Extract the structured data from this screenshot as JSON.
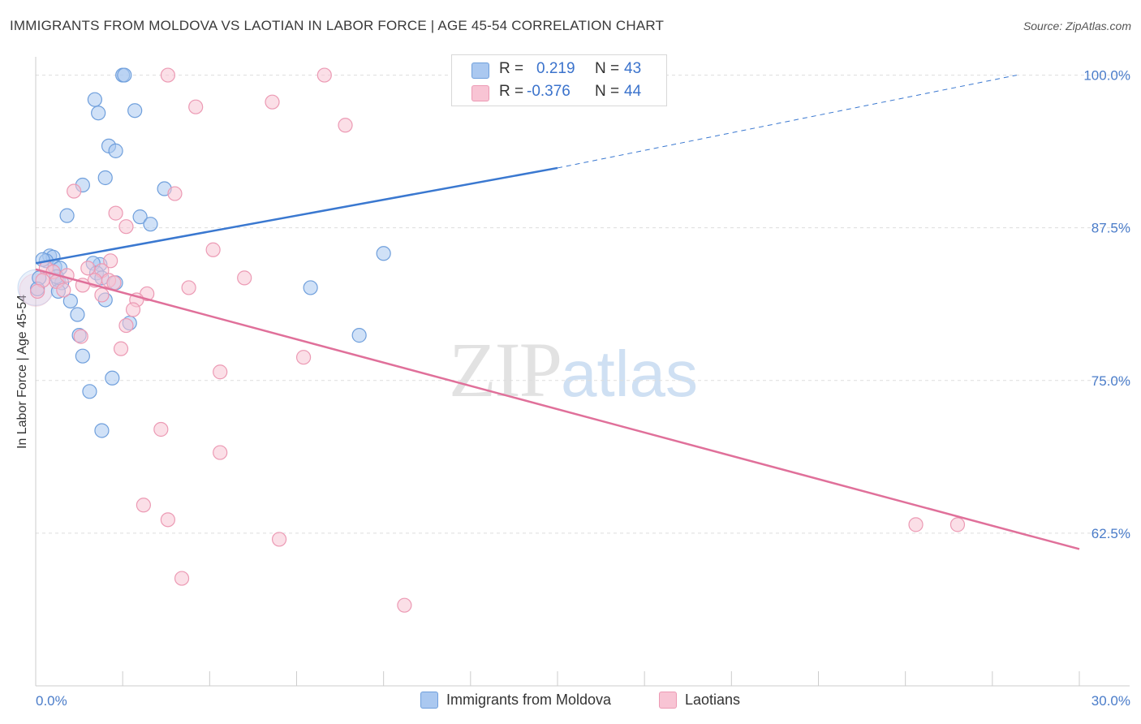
{
  "header": {
    "title": "IMMIGRANTS FROM MOLDOVA VS LAOTIAN IN LABOR FORCE | AGE 45-54 CORRELATION CHART",
    "source": "Source: ZipAtlas.com"
  },
  "watermark": {
    "zip": "ZIP",
    "atlas": "atlas"
  },
  "legend": {
    "rows": [
      {
        "r_label": "R =",
        "r_value": "0.219",
        "n_label": "N =",
        "n_value": "43"
      },
      {
        "r_label": "R =",
        "r_value": "-0.376",
        "n_label": "N =",
        "n_value": "44"
      }
    ]
  },
  "colors": {
    "moldova_fill": "#aac8f0",
    "moldova_stroke": "#6f9fdc",
    "moldova_line": "#3a78d0",
    "laotian_fill": "#f8c4d4",
    "laotian_stroke": "#ec9ab4",
    "laotian_line": "#e0709a",
    "axis_text": "#4a7cc9",
    "grid": "#dddddd"
  },
  "chart_data": {
    "type": "scatter",
    "title": "IMMIGRANTS FROM MOLDOVA VS LAOTIAN IN LABOR FORCE | AGE 45-54 CORRELATION CHART",
    "xlabel": "",
    "ylabel": "In Labor Force | Age 45-54",
    "xlim": [
      0,
      30
    ],
    "ylim": [
      50,
      101.5
    ],
    "x_tick_labels": [
      "0.0%",
      "30.0%"
    ],
    "y_ticks": [
      62.5,
      75.0,
      87.5,
      100.0
    ],
    "y_tick_labels": [
      "62.5%",
      "75.0%",
      "87.5%",
      "100.0%"
    ],
    "grid": true,
    "legend_position": "top-center",
    "series": [
      {
        "name": "Immigrants from Moldova",
        "R": 0.219,
        "N": 43,
        "trend": {
          "x0": 0.0,
          "y0": 84.6,
          "x1": 15.0,
          "y1": 92.4,
          "dashed_to_x": 28.2,
          "dashed_to_y": 100.0
        },
        "points": [
          [
            2.5,
            100.0
          ],
          [
            2.55,
            100.0
          ],
          [
            14.4,
            100.0
          ],
          [
            1.7,
            98.0
          ],
          [
            1.8,
            96.9
          ],
          [
            2.85,
            97.1
          ],
          [
            2.1,
            94.2
          ],
          [
            2.3,
            93.8
          ],
          [
            2.0,
            91.6
          ],
          [
            1.35,
            91.0
          ],
          [
            3.7,
            90.7
          ],
          [
            0.9,
            88.5
          ],
          [
            3.0,
            88.4
          ],
          [
            3.3,
            87.8
          ],
          [
            0.4,
            85.2
          ],
          [
            0.5,
            85.1
          ],
          [
            0.3,
            84.8
          ],
          [
            0.55,
            84.3
          ],
          [
            1.85,
            84.5
          ],
          [
            1.65,
            84.6
          ],
          [
            0.7,
            84.2
          ],
          [
            1.75,
            83.8
          ],
          [
            0.1,
            83.4
          ],
          [
            0.65,
            83.2
          ],
          [
            0.75,
            83.0
          ],
          [
            1.9,
            83.4
          ],
          [
            2.3,
            83.0
          ],
          [
            0.05,
            82.5
          ],
          [
            0.65,
            82.3
          ],
          [
            1.0,
            81.5
          ],
          [
            2.0,
            81.6
          ],
          [
            7.9,
            82.6
          ],
          [
            1.2,
            80.4
          ],
          [
            2.7,
            79.7
          ],
          [
            1.25,
            78.7
          ],
          [
            9.3,
            78.7
          ],
          [
            1.35,
            77.0
          ],
          [
            10.0,
            85.4
          ],
          [
            2.2,
            75.2
          ],
          [
            1.55,
            74.1
          ],
          [
            1.9,
            70.9
          ],
          [
            0.2,
            84.9
          ],
          [
            0.6,
            83.5
          ]
        ]
      },
      {
        "name": "Laotians",
        "R": -0.376,
        "N": 44,
        "trend": {
          "x0": 0.0,
          "y0": 84.1,
          "x1": 30.0,
          "y1": 61.2
        },
        "points": [
          [
            3.8,
            100.0
          ],
          [
            8.3,
            100.0
          ],
          [
            6.8,
            97.8
          ],
          [
            4.6,
            97.4
          ],
          [
            8.9,
            95.9
          ],
          [
            1.1,
            90.5
          ],
          [
            4.0,
            90.3
          ],
          [
            2.3,
            88.7
          ],
          [
            2.6,
            87.6
          ],
          [
            5.1,
            85.7
          ],
          [
            6.0,
            83.4
          ],
          [
            2.15,
            84.8
          ],
          [
            0.3,
            84.2
          ],
          [
            0.5,
            83.9
          ],
          [
            1.9,
            84.0
          ],
          [
            0.2,
            83.2
          ],
          [
            0.6,
            83.1
          ],
          [
            1.7,
            83.2
          ],
          [
            2.1,
            83.2
          ],
          [
            2.25,
            83.0
          ],
          [
            4.4,
            82.6
          ],
          [
            0.8,
            82.4
          ],
          [
            1.35,
            82.8
          ],
          [
            1.9,
            82.0
          ],
          [
            3.2,
            82.1
          ],
          [
            2.9,
            81.6
          ],
          [
            0.05,
            82.3
          ],
          [
            2.8,
            80.8
          ],
          [
            2.6,
            79.5
          ],
          [
            1.3,
            78.6
          ],
          [
            2.45,
            77.6
          ],
          [
            7.7,
            76.9
          ],
          [
            5.3,
            75.7
          ],
          [
            3.6,
            71.0
          ],
          [
            5.3,
            69.1
          ],
          [
            3.1,
            64.8
          ],
          [
            3.8,
            63.6
          ],
          [
            7.0,
            62.0
          ],
          [
            25.3,
            63.2
          ],
          [
            26.5,
            63.2
          ],
          [
            4.2,
            58.8
          ],
          [
            10.6,
            56.6
          ],
          [
            0.9,
            83.6
          ],
          [
            1.5,
            84.2
          ]
        ]
      }
    ]
  },
  "bottom_legend": {
    "items": [
      "Immigrants from Moldova",
      "Laotians"
    ]
  },
  "axes": {
    "x_min_label": "0.0%",
    "x_max_label": "30.0%",
    "y_label": "In Labor Force | Age 45-54"
  }
}
